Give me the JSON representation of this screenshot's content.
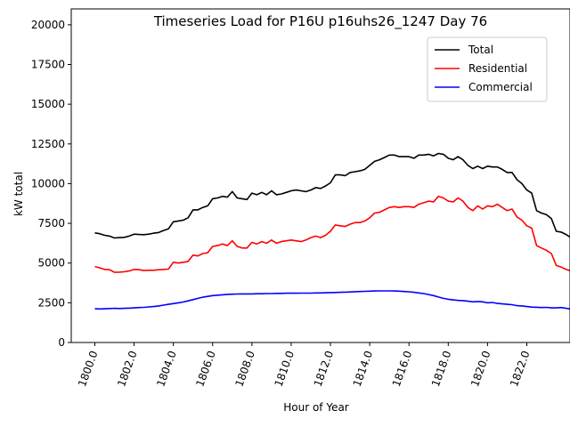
{
  "chart_data": {
    "type": "line",
    "title": "Timeseries Load for P16U p16uhs26_1247  Day 76",
    "xlabel": "Hour of Year",
    "ylabel": "kW total",
    "xlim": [
      1798.8,
      1824.2
    ],
    "ylim": [
      0,
      21000
    ],
    "x_ticks": [
      1800,
      1802,
      1804,
      1806,
      1808,
      1810,
      1812,
      1814,
      1816,
      1818,
      1820,
      1822
    ],
    "x_tick_labels": [
      "1800.0",
      "1802.0",
      "1804.0",
      "1806.0",
      "1808.0",
      "1810.0",
      "1812.0",
      "1814.0",
      "1816.0",
      "1818.0",
      "1820.0",
      "1822.0"
    ],
    "y_ticks": [
      0,
      2500,
      5000,
      7500,
      10000,
      12500,
      15000,
      17500,
      20000
    ],
    "y_tick_labels": [
      "0",
      "2500",
      "5000",
      "7500",
      "10000",
      "12500",
      "15000",
      "17500",
      "20000"
    ],
    "legend_position": "top-right",
    "x_start": 1800.0,
    "x_step": 0.25,
    "series": [
      {
        "name": "Total",
        "color": "#000000",
        "values": [
          6900,
          6850,
          6750,
          6700,
          6580,
          6600,
          6620,
          6700,
          6820,
          6800,
          6790,
          6820,
          6880,
          6920,
          7050,
          7150,
          7600,
          7650,
          7700,
          7850,
          8350,
          8350,
          8500,
          8600,
          9050,
          9100,
          9200,
          9150,
          9500,
          9100,
          9050,
          9000,
          9400,
          9300,
          9450,
          9300,
          9550,
          9300,
          9350,
          9450,
          9550,
          9600,
          9550,
          9500,
          9600,
          9750,
          9700,
          9850,
          10050,
          10550,
          10550,
          10500,
          10700,
          10750,
          10800,
          10900,
          11150,
          11400,
          11500,
          11650,
          11800,
          11800,
          11700,
          11700,
          11700,
          11600,
          11800,
          11800,
          11850,
          11750,
          11900,
          11850,
          11600,
          11500,
          11700,
          11500,
          11150,
          10950,
          11100,
          10950,
          11100,
          11050,
          11050,
          10900,
          10700,
          10700,
          10250,
          10000,
          9600,
          9400,
          8300,
          8150,
          8050,
          7800,
          7000,
          6950,
          6800,
          6600
        ]
      },
      {
        "name": "Residential",
        "color": "#ff0000",
        "values": [
          4780,
          4700,
          4600,
          4580,
          4420,
          4430,
          4450,
          4500,
          4600,
          4580,
          4530,
          4550,
          4550,
          4580,
          4600,
          4620,
          5050,
          5000,
          5050,
          5100,
          5500,
          5450,
          5600,
          5650,
          6050,
          6100,
          6200,
          6100,
          6400,
          6050,
          5950,
          5950,
          6300,
          6200,
          6350,
          6250,
          6450,
          6250,
          6350,
          6400,
          6450,
          6400,
          6350,
          6450,
          6600,
          6700,
          6600,
          6750,
          7000,
          7400,
          7350,
          7300,
          7450,
          7550,
          7550,
          7650,
          7850,
          8150,
          8200,
          8350,
          8500,
          8550,
          8500,
          8550,
          8550,
          8500,
          8700,
          8800,
          8900,
          8850,
          9200,
          9100,
          8900,
          8850,
          9100,
          8900,
          8500,
          8300,
          8600,
          8400,
          8600,
          8550,
          8700,
          8500,
          8300,
          8400,
          7900,
          7700,
          7350,
          7200,
          6100,
          5950,
          5800,
          5600,
          4850,
          4750,
          4600,
          4500
        ]
      },
      {
        "name": "Commercial",
        "color": "#0000ff",
        "values": [
          2120,
          2110,
          2120,
          2140,
          2150,
          2140,
          2150,
          2160,
          2180,
          2200,
          2210,
          2240,
          2260,
          2300,
          2350,
          2400,
          2450,
          2500,
          2550,
          2620,
          2700,
          2780,
          2850,
          2900,
          2950,
          2980,
          3000,
          3030,
          3040,
          3050,
          3060,
          3060,
          3060,
          3070,
          3070,
          3080,
          3080,
          3090,
          3090,
          3100,
          3100,
          3100,
          3110,
          3110,
          3110,
          3120,
          3120,
          3130,
          3140,
          3150,
          3160,
          3170,
          3180,
          3200,
          3210,
          3220,
          3230,
          3240,
          3250,
          3250,
          3250,
          3240,
          3230,
          3210,
          3190,
          3160,
          3120,
          3080,
          3020,
          2950,
          2860,
          2780,
          2720,
          2680,
          2650,
          2640,
          2600,
          2560,
          2580,
          2560,
          2500,
          2520,
          2460,
          2430,
          2400,
          2380,
          2320,
          2300,
          2260,
          2230,
          2220,
          2200,
          2210,
          2180,
          2180,
          2200,
          2150,
          2100
        ]
      }
    ]
  }
}
